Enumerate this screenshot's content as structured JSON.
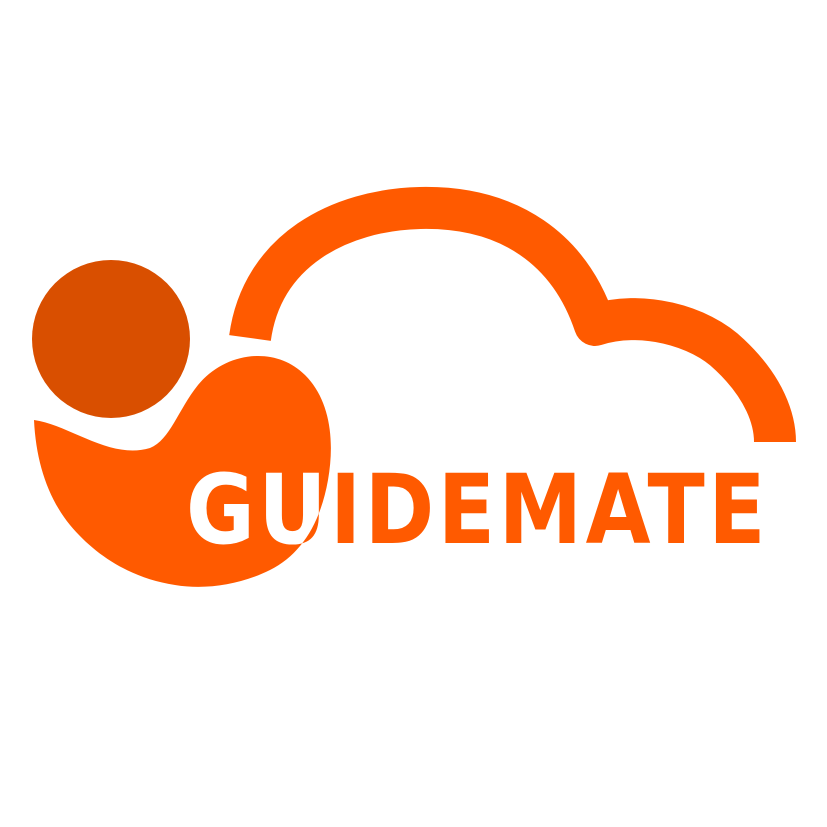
{
  "logo": {
    "wordmark": "GUIDEMATE",
    "icons": {
      "head": "person-head-icon",
      "body": "person-body-icon",
      "cloud": "cloud-outline-icon"
    },
    "colors": {
      "primary": "#ff5a00",
      "head": "#d94f00",
      "background": "#ffffff",
      "knockout": "#ffffff"
    }
  }
}
